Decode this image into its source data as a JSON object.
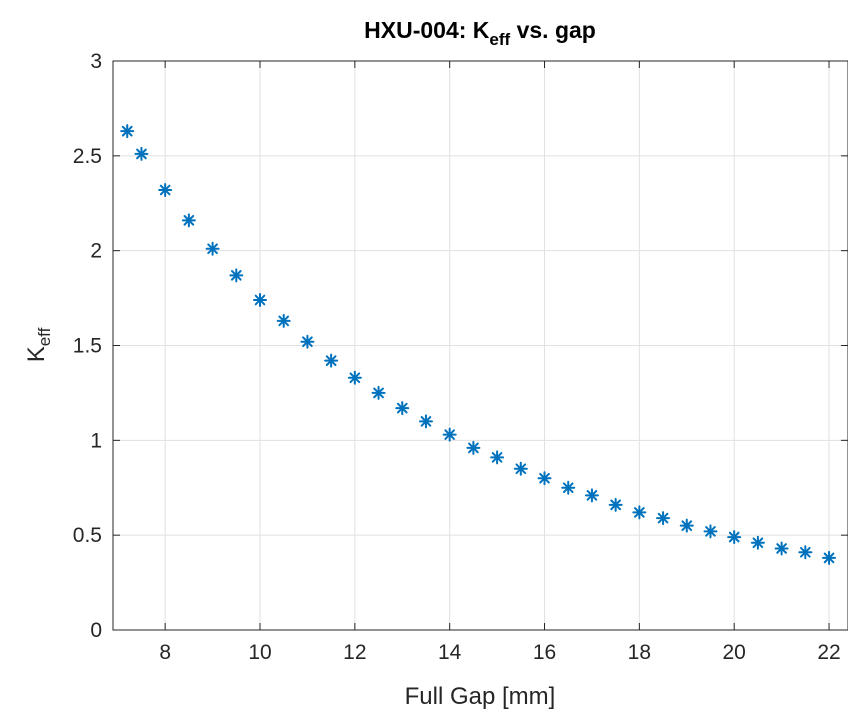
{
  "chart_data": {
    "type": "scatter",
    "title": {
      "prefix": "HXU-004: K",
      "subscript": "eff",
      "suffix": " vs. gap"
    },
    "xlabel": "Full Gap [mm]",
    "ylabel": {
      "base": "K",
      "subscript": "eff"
    },
    "xlim": [
      6.9,
      22.4
    ],
    "ylim": [
      0,
      3
    ],
    "xticks": [
      8,
      10,
      12,
      14,
      16,
      18,
      20,
      22
    ],
    "yticks": [
      0,
      0.5,
      1,
      1.5,
      2,
      2.5,
      3
    ],
    "grid": true,
    "marker": "asterisk",
    "marker_color": "#0072BD",
    "series": [
      {
        "x": [
          7.2,
          7.5,
          8,
          8.5,
          9,
          9.5,
          10,
          10.5,
          11,
          11.5,
          12,
          12.5,
          13,
          13.5,
          14,
          14.5,
          15,
          15.5,
          16,
          16.5,
          17,
          17.5,
          18,
          18.5,
          19,
          19.5,
          20,
          20.5,
          21,
          21.5,
          22
        ],
        "y": [
          2.63,
          2.51,
          2.32,
          2.16,
          2.01,
          1.87,
          1.74,
          1.63,
          1.52,
          1.42,
          1.33,
          1.25,
          1.17,
          1.1,
          1.03,
          0.96,
          0.91,
          0.85,
          0.8,
          0.75,
          0.71,
          0.66,
          0.62,
          0.59,
          0.55,
          0.52,
          0.49,
          0.46,
          0.43,
          0.41,
          0.38
        ]
      }
    ]
  }
}
